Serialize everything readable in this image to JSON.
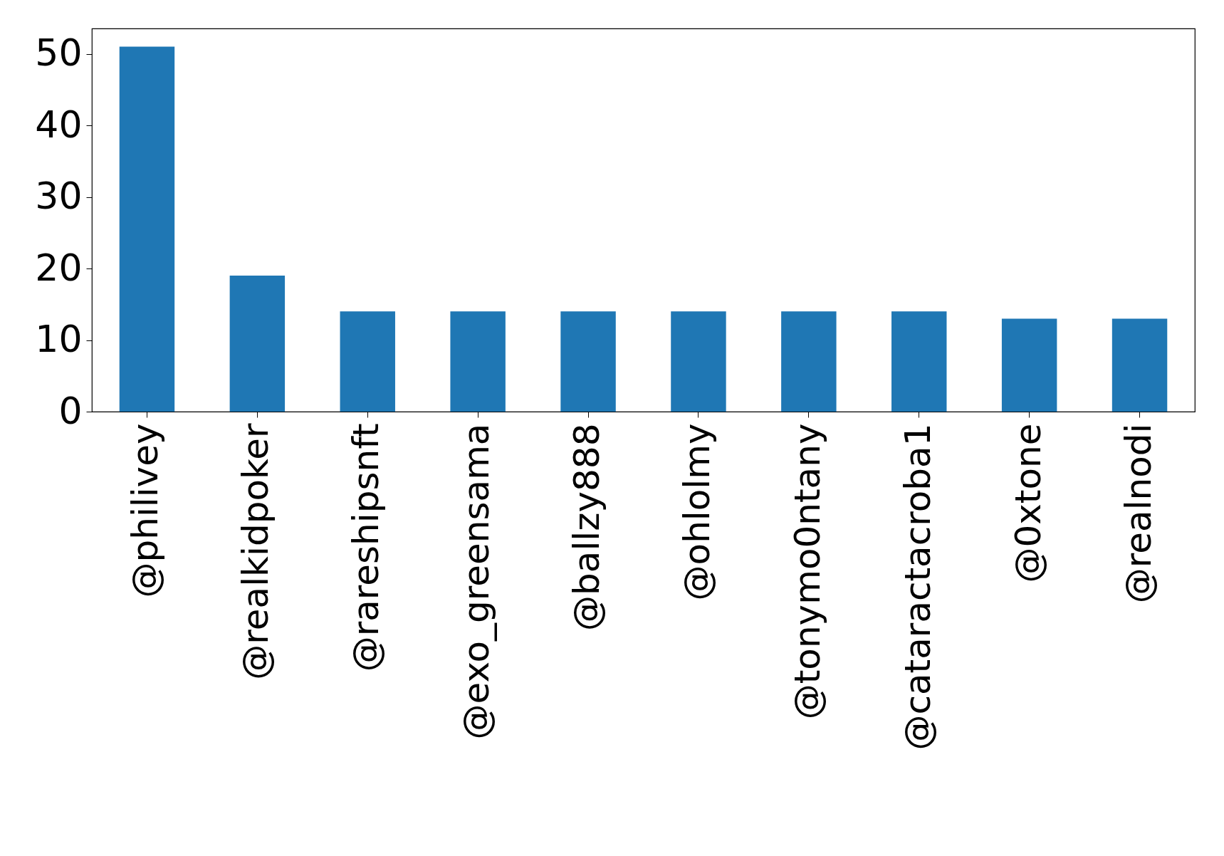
{
  "chart_data": {
    "type": "bar",
    "categories": [
      "@philivey",
      "@realkidpoker",
      "@rareshipsnft",
      "@exo_greensama",
      "@ballzy888",
      "@ohlolmy",
      "@tonymo0ntany",
      "@cataractacroba1",
      "@0xtone",
      "@realnodi"
    ],
    "values": [
      51,
      19,
      14,
      14,
      14,
      14,
      14,
      14,
      13,
      13
    ],
    "color": "#1f77b4",
    "ylim": [
      0,
      53.55
    ],
    "yticks": [
      0,
      10,
      20,
      30,
      40,
      50
    ],
    "grid": false
  }
}
